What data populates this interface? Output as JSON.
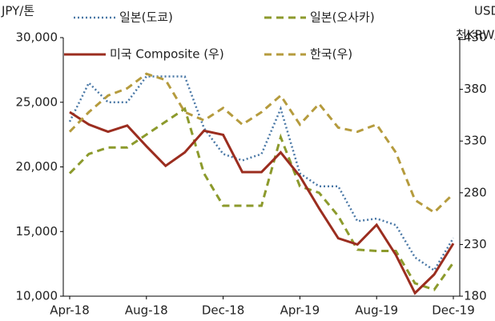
{
  "chart_data": {
    "type": "line",
    "ylabel": "JPY/톤",
    "y2label": [
      "USD/lt",
      "천KRW/톤"
    ],
    "categories": [
      "Apr-18",
      null,
      null,
      null,
      "Aug-18",
      null,
      null,
      null,
      "Dec-18",
      null,
      null,
      null,
      "Apr-19",
      null,
      null,
      null,
      "Aug-19",
      null,
      null,
      null,
      "Dec-19"
    ],
    "series": [
      {
        "name": "일본(도쿄)",
        "color": "#4a78a6",
        "style": "dotted",
        "values": [
          23500,
          26500,
          25000,
          25000,
          27000,
          27000,
          27000,
          23000,
          21000,
          20500,
          21000,
          24500,
          19500,
          18500,
          18500,
          15800,
          16000,
          15500,
          13000,
          12000,
          14500
        ]
      },
      {
        "name": "일본(오사카)",
        "color": "#8c9a2c",
        "style": "dashed",
        "values": [
          19500,
          21000,
          21500,
          21500,
          22500,
          23500,
          24500,
          19500,
          17000,
          17000,
          17000,
          22300,
          18500,
          18000,
          16200,
          13600,
          13500,
          13500,
          11000,
          10500,
          12600
        ]
      },
      {
        "name": "미국 Composite (우)",
        "color": "#9b2d1f",
        "style": "solid",
        "axis": "y2",
        "values": [
          358,
          346,
          339,
          345,
          325,
          306,
          319,
          340,
          336,
          300,
          300,
          319,
          296,
          265,
          236,
          230,
          249,
          220,
          183,
          201,
          231
        ]
      },
      {
        "name": "한국(우)",
        "color": "#b59b3d",
        "style": "dashed",
        "axis": "y2",
        "values": [
          339,
          358,
          374,
          381,
          395,
          389,
          358,
          350,
          362,
          346,
          358,
          374,
          346,
          366,
          343,
          339,
          346,
          319,
          273,
          261,
          279
        ]
      }
    ],
    "ylim": [
      10000,
      30000
    ],
    "yticks": [
      {
        "value": 10000,
        "label": "10,000"
      },
      {
        "value": 15000,
        "label": "15,000"
      },
      {
        "value": 20000,
        "label": "20,000"
      },
      {
        "value": 25000,
        "label": "25,000"
      },
      {
        "value": 30000,
        "label": "30,000"
      }
    ],
    "y2lim": [
      180,
      430
    ],
    "y2ticks": [
      180,
      230,
      280,
      330,
      380,
      430
    ]
  }
}
